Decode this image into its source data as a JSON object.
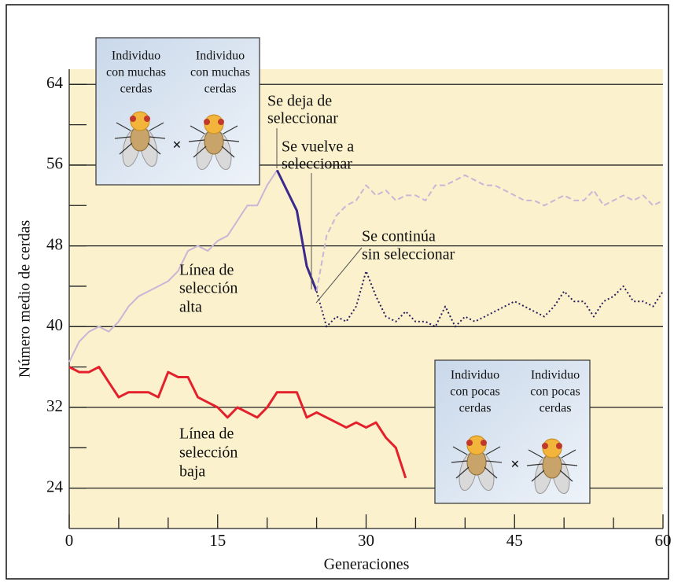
{
  "chart_data": {
    "type": "line",
    "xlabel": "Generaciones",
    "ylabel": "Número medio de cerdas",
    "xlim": [
      0,
      60
    ],
    "xticks": [
      0,
      15,
      30,
      45,
      60
    ],
    "xminorticks": [
      5,
      10,
      20,
      25,
      35,
      40,
      50,
      55
    ],
    "ylim": [
      20,
      65.5
    ],
    "yticks": [
      24,
      32,
      40,
      48,
      56,
      64
    ],
    "yminorticks": [
      28,
      36,
      44,
      52,
      60
    ],
    "grid": true,
    "series": [
      {
        "color": "#c9b6d6",
        "dash": "solid",
        "width": 2,
        "x": [
          0,
          1,
          2,
          3,
          4,
          5,
          6,
          7,
          8,
          9,
          10,
          11,
          12,
          13,
          14,
          15,
          16,
          17,
          18,
          19,
          20,
          21
        ],
        "values": [
          36.5,
          38.5,
          39.5,
          40,
          39.5,
          40.5,
          42,
          43,
          43.5,
          44,
          44.5,
          45.5,
          47.5,
          48,
          47.5,
          48.5,
          49,
          50.5,
          52,
          52,
          54,
          55.5
        ]
      },
      {
        "color": "#3b2a8c",
        "dash": "solid",
        "width": 3,
        "x": [
          21,
          22,
          23,
          24,
          25
        ],
        "values": [
          55.5,
          53.5,
          51.5,
          46,
          43.5
        ]
      },
      {
        "color": "#c9b6d6",
        "dash": "dashed",
        "width": 2,
        "x": [
          25,
          26,
          27,
          28,
          29,
          30,
          31,
          32,
          33,
          34,
          35,
          36,
          37,
          38,
          39,
          40,
          41,
          42,
          43,
          44,
          45,
          46,
          47,
          48,
          49,
          50,
          51,
          52,
          53,
          54,
          55,
          56,
          57,
          58,
          59,
          60
        ],
        "values": [
          43.5,
          49,
          51,
          52,
          52.5,
          54,
          53,
          53.5,
          52.5,
          53,
          53,
          52.5,
          54,
          54,
          54.5,
          55,
          54.5,
          54,
          54,
          53.5,
          53,
          52.5,
          52.5,
          52,
          52.5,
          53,
          52.5,
          52.5,
          53.5,
          52,
          52.5,
          53,
          52.5,
          53,
          52,
          52.5
        ]
      },
      {
        "color": "#2a2060",
        "dash": "dotted",
        "width": 2,
        "x": [
          25,
          26,
          27,
          28,
          29,
          30,
          31,
          32,
          33,
          34,
          35,
          36,
          37,
          38,
          39,
          40,
          41,
          42,
          43,
          44,
          45,
          46,
          47,
          48,
          49,
          50,
          51,
          52,
          53,
          54,
          55,
          56,
          57,
          58,
          59,
          60
        ],
        "values": [
          43.5,
          40,
          41,
          40.5,
          42,
          45.5,
          43,
          41,
          40.5,
          41.5,
          40.5,
          40.5,
          40,
          42,
          40,
          41,
          40.5,
          41,
          41.5,
          42,
          42.5,
          42,
          41.5,
          41,
          42,
          43.5,
          42.5,
          42.5,
          41,
          42.5,
          43,
          44,
          42.5,
          42.5,
          42,
          43.5
        ]
      },
      {
        "color": "#e3202b",
        "dash": "solid",
        "width": 3,
        "x": [
          0,
          1,
          2,
          3,
          4,
          5,
          6,
          7,
          8,
          9,
          10,
          11,
          12,
          13,
          14,
          15,
          16,
          17,
          18,
          19,
          20,
          21,
          22,
          23,
          24,
          25,
          26,
          27,
          28,
          29,
          30,
          31,
          32,
          33,
          34
        ],
        "values": [
          36,
          35.5,
          35.5,
          36,
          34.5,
          33,
          33.5,
          33.5,
          33.5,
          33,
          35.5,
          35,
          35,
          33,
          32.5,
          32,
          31,
          32,
          31.5,
          31,
          32,
          33.5,
          33.5,
          33.5,
          31,
          31.5,
          31,
          30.5,
          30,
          30.5,
          30,
          30.5,
          29,
          28,
          25
        ]
      }
    ],
    "annotations": [
      {
        "lines": [
          "Se deja de",
          "seleccionar"
        ]
      },
      {
        "lines": [
          "Se vuelve a",
          "seleccionar"
        ]
      },
      {
        "lines": [
          "Se continúa",
          "sin seleccionar"
        ]
      },
      {
        "lines": [
          "Línea de",
          "selección",
          "alta"
        ]
      },
      {
        "lines": [
          "Línea de",
          "selección",
          "baja"
        ]
      }
    ],
    "insets": [
      {
        "parents": [
          {
            "lines": [
              "Individuo",
              "con muchas",
              "cerdas"
            ]
          },
          {
            "lines": [
              "Individuo",
              "con muchas",
              "cerdas"
            ]
          }
        ],
        "symbol": "×"
      },
      {
        "parents": [
          {
            "lines": [
              "Individuo",
              "con pocas",
              "cerdas"
            ]
          },
          {
            "lines": [
              "Individuo",
              "con pocas",
              "cerdas"
            ]
          }
        ],
        "symbol": "×"
      }
    ]
  }
}
